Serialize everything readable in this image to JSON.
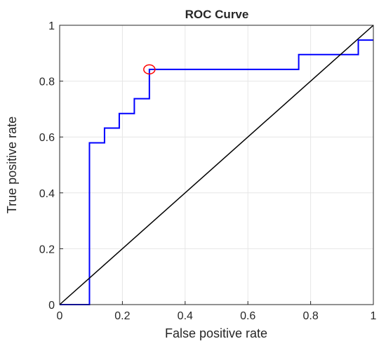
{
  "chart_data": {
    "type": "line",
    "title": "ROC Curve",
    "xlabel": "False positive rate",
    "ylabel": "True positive rate",
    "xlim": [
      0,
      1
    ],
    "ylim": [
      0,
      1
    ],
    "xticks": [
      0,
      0.2,
      0.4,
      0.6,
      0.8,
      1
    ],
    "yticks": [
      0,
      0.2,
      0.4,
      0.6,
      0.8,
      1
    ],
    "xtick_labels": [
      "0",
      "0.2",
      "0.4",
      "0.6",
      "0.8",
      "1"
    ],
    "ytick_labels": [
      "0",
      "0.2",
      "0.4",
      "0.6",
      "0.8",
      "1"
    ],
    "grid": true,
    "series": [
      {
        "color": "#0000ff",
        "style": "step",
        "x": [
          0,
          0.095,
          0.095,
          0.143,
          0.143,
          0.19,
          0.19,
          0.238,
          0.238,
          0.286,
          0.286,
          0.762,
          0.762,
          0.952,
          0.952,
          1
        ],
        "y": [
          0,
          0,
          0.579,
          0.579,
          0.632,
          0.632,
          0.684,
          0.684,
          0.737,
          0.737,
          0.842,
          0.842,
          0.895,
          0.895,
          0.947,
          0.947
        ]
      },
      {
        "color": "#000000",
        "style": "diagonal",
        "x": [
          0,
          1
        ],
        "y": [
          0,
          1
        ]
      }
    ],
    "marker": {
      "shape": "circle",
      "color": "#ff0000",
      "x": 0.286,
      "y": 0.842
    }
  }
}
